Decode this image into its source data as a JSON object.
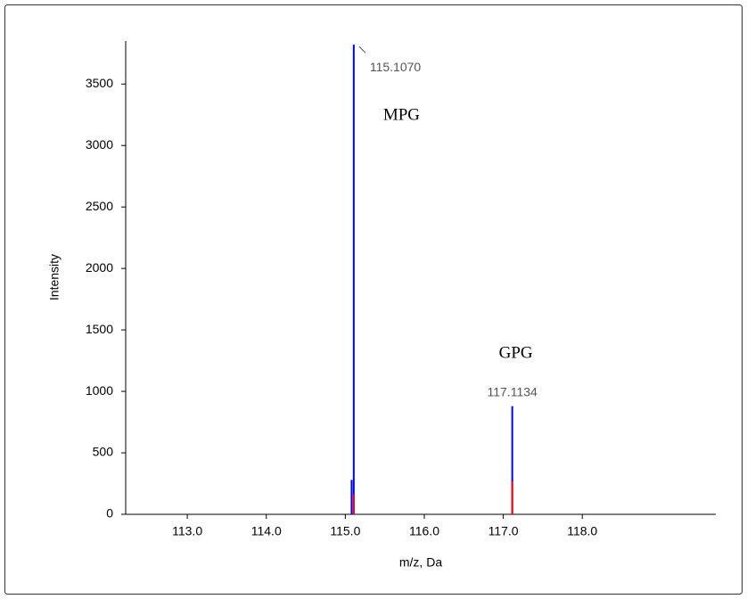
{
  "chart_data": {
    "type": "stick",
    "x_label": "m/z, Da",
    "y_label": "Intensity",
    "xlim": [
      112.22,
      119.69
    ],
    "xticks": [
      {
        "value": 113,
        "label": "113.0"
      },
      {
        "value": 114,
        "label": "114.0"
      },
      {
        "value": 115,
        "label": "115.0"
      },
      {
        "value": 116,
        "label": "116.0"
      },
      {
        "value": 117,
        "label": "117.0"
      },
      {
        "value": 118,
        "label": "118.0"
      }
    ],
    "ylim": [
      0,
      3850
    ],
    "yticks": [
      0,
      500,
      1000,
      1500,
      2000,
      2500,
      3000,
      3500
    ],
    "series": [
      {
        "color": "#0000ff",
        "x": [
          115.08,
          115.107,
          117.1134
        ],
        "values": [
          280,
          3820,
          880
        ],
        "x_labels": [
          null,
          "115.1070",
          "117.1134"
        ]
      },
      {
        "color": "#ff0000",
        "x": [
          115.107,
          117.1134
        ],
        "values": [
          160,
          268
        ]
      }
    ],
    "annotations": [
      "MPG",
      "GPG"
    ]
  }
}
